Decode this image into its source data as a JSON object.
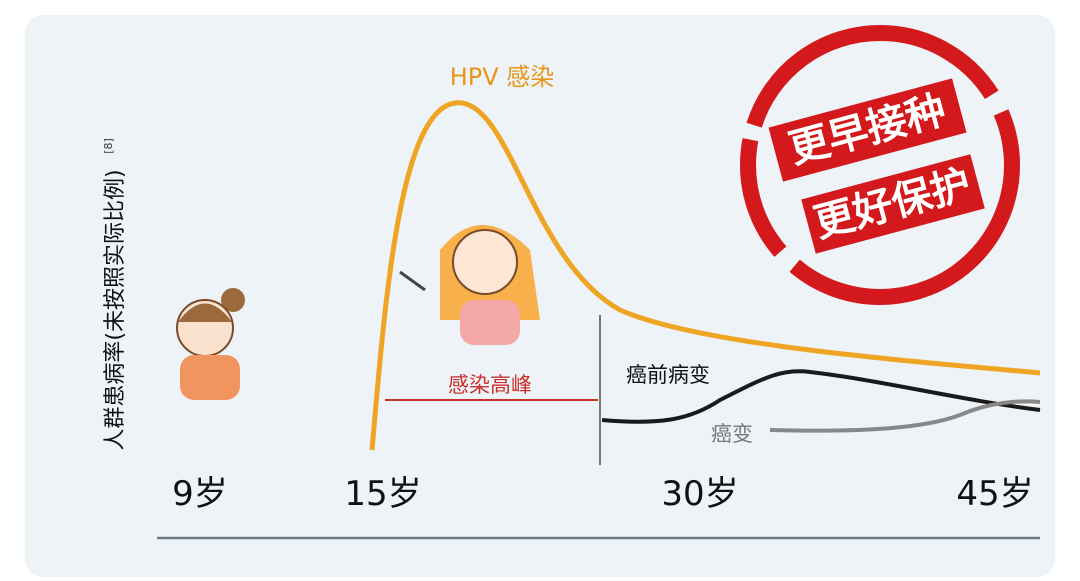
{
  "axis": {
    "y_label": "人群患病率(未按照实际比例)",
    "reference": "[8]",
    "ages": [
      "9岁",
      "15岁",
      "30岁",
      "45岁"
    ]
  },
  "curves": {
    "hpv": "HPV 感染",
    "peak": "感染高峰",
    "precancer": "癌前病变",
    "cancer": "癌变"
  },
  "stamp": {
    "line1": "更早接种",
    "line2": "更好保护"
  }
}
